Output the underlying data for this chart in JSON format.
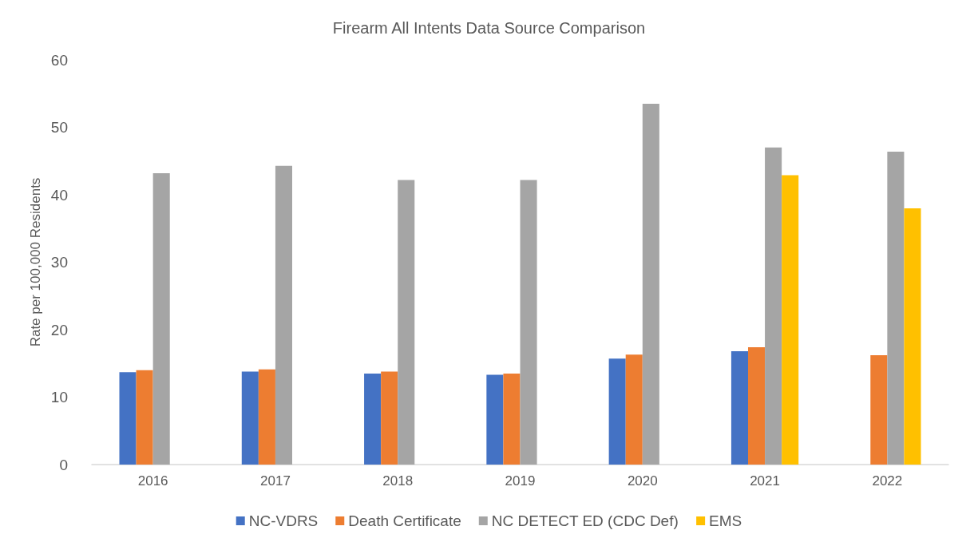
{
  "chart_data": {
    "type": "bar",
    "title": "Firearm All Intents Data Source Comparison",
    "ylabel": "Rate per 100,000 Residents",
    "categories": [
      "2016",
      "2017",
      "2018",
      "2019",
      "2020",
      "2021",
      "2022"
    ],
    "series": [
      {
        "name": "NC-VDRS",
        "color": "#4472c4",
        "values": [
          13.7,
          13.8,
          13.5,
          13.3,
          15.7,
          16.8,
          null
        ]
      },
      {
        "name": "Death Certificate",
        "color": "#ed7d31",
        "values": [
          14.0,
          14.1,
          13.8,
          13.5,
          16.3,
          17.4,
          16.2
        ]
      },
      {
        "name": "NC DETECT ED (CDC Def)",
        "color": "#a5a5a5",
        "values": [
          43.2,
          44.3,
          42.2,
          42.2,
          53.5,
          47.0,
          46.4
        ]
      },
      {
        "name": "EMS",
        "color": "#ffc000",
        "values": [
          null,
          null,
          null,
          null,
          null,
          42.9,
          38.0
        ]
      }
    ],
    "ylim": [
      0,
      60
    ],
    "yticks": [
      0,
      10,
      20,
      30,
      40,
      50,
      60
    ],
    "grid": false,
    "legend": "bottom"
  }
}
